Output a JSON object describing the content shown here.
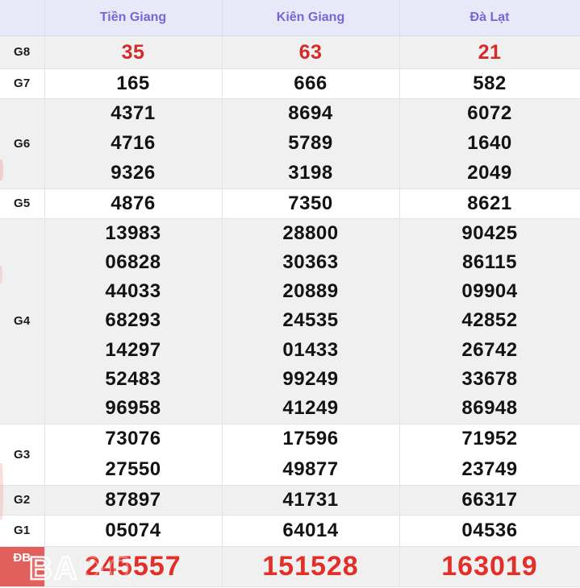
{
  "table": {
    "columns": [
      "Tiền Giang",
      "Kiên Giang",
      "Đà Lạt"
    ],
    "rows": [
      {
        "label": "G8",
        "values": [
          [
            "35"
          ],
          [
            "63"
          ],
          [
            "21"
          ]
        ]
      },
      {
        "label": "G7",
        "values": [
          [
            "165"
          ],
          [
            "666"
          ],
          [
            "582"
          ]
        ]
      },
      {
        "label": "G6",
        "values": [
          [
            "4371",
            "4716",
            "9326"
          ],
          [
            "8694",
            "5789",
            "3198"
          ],
          [
            "6072",
            "1640",
            "2049"
          ]
        ]
      },
      {
        "label": "G5",
        "values": [
          [
            "4876"
          ],
          [
            "7350"
          ],
          [
            "8621"
          ]
        ]
      },
      {
        "label": "G4",
        "values": [
          [
            "13983",
            "06828",
            "44033",
            "68293",
            "14297",
            "52483",
            "96958"
          ],
          [
            "28800",
            "30363",
            "20889",
            "24535",
            "01433",
            "99249",
            "41249"
          ],
          [
            "90425",
            "86115",
            "09904",
            "42852",
            "26742",
            "33678",
            "86948"
          ]
        ]
      },
      {
        "label": "G3",
        "values": [
          [
            "73076",
            "27550"
          ],
          [
            "17596",
            "49877"
          ],
          [
            "71952",
            "23749"
          ]
        ]
      },
      {
        "label": "G2",
        "values": [
          [
            "87897"
          ],
          [
            "41731"
          ],
          [
            "66317"
          ]
        ]
      },
      {
        "label": "G1",
        "values": [
          [
            "05074"
          ],
          [
            "64014"
          ],
          [
            "04536"
          ]
        ]
      },
      {
        "label": "ĐB",
        "values": [
          [
            "245557"
          ],
          [
            "151528"
          ],
          [
            "163019"
          ]
        ]
      }
    ]
  },
  "watermark": {
    "text": "BA",
    "text_faint": "OQ"
  },
  "colors": {
    "header_bg": "#e9e8f8",
    "header_text": "#7468d6",
    "stripe_bg": "#f0f0f1",
    "highlight_red": "#d32b28",
    "special_value_red": "#e22f28",
    "special_label_bg": "#e2605c"
  }
}
